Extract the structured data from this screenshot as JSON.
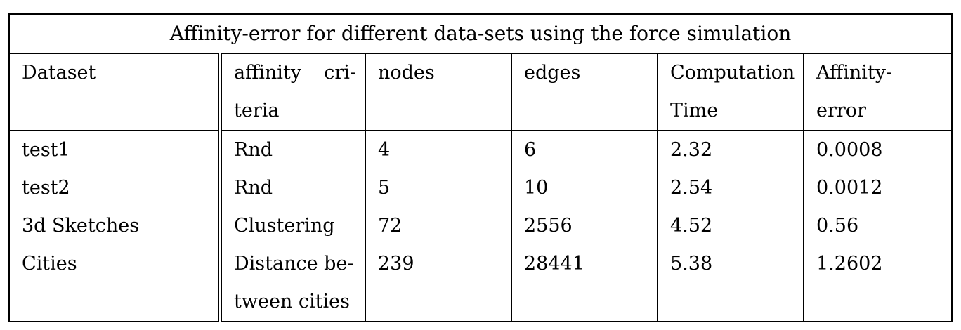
{
  "table": {
    "caption": "Affinity-error for different data-sets using the force simulation",
    "headers": {
      "dataset": "Dataset",
      "affinity_criteria_line1_a": "affinity",
      "affinity_criteria_line1_b": "cri-",
      "affinity_criteria_line2": "teria",
      "nodes": "nodes",
      "edges": "edges",
      "computation_line1": "Computation",
      "computation_line2": "Time",
      "affinity_error_line1": "Affinity-",
      "affinity_error_line2": "error"
    },
    "rows": [
      {
        "dataset": "test1",
        "criteria": "Rnd",
        "nodes": "4",
        "edges": "6",
        "time": "2.32",
        "error": "0.0008"
      },
      {
        "dataset": "test2",
        "criteria": "Rnd",
        "nodes": "5",
        "edges": "10",
        "time": "2.54",
        "error": "0.0012"
      },
      {
        "dataset": "3d Sketches",
        "criteria": "Clustering",
        "nodes": "72",
        "edges": "2556",
        "time": "4.52",
        "error": "0.56"
      },
      {
        "dataset": "Cities",
        "criteria_line1": "Distance be-",
        "criteria_line2": "tween cities",
        "nodes": "239",
        "edges": "28441",
        "time": "5.38",
        "error": "1.2602"
      }
    ]
  }
}
